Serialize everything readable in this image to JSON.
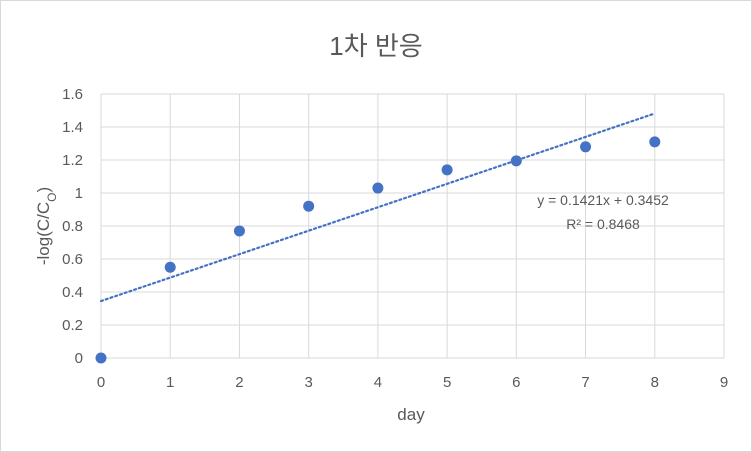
{
  "chart_data": {
    "type": "scatter",
    "title": "1차 반응",
    "xlabel": "day",
    "ylabel_main": "-log(C/C",
    "ylabel_sub": "O",
    "ylabel_close": ")",
    "xlim": [
      0,
      9
    ],
    "ylim": [
      0,
      1.6
    ],
    "x_ticks": [
      0,
      1,
      2,
      3,
      4,
      5,
      6,
      7,
      8,
      9
    ],
    "y_ticks": [
      0,
      0.2,
      0.4,
      0.6,
      0.8,
      1,
      1.2,
      1.4,
      1.6
    ],
    "y_tick_labels": [
      "0",
      "0.2",
      "0.4",
      "0.6",
      "0.8",
      "1",
      "1.2",
      "1.4",
      "1.6"
    ],
    "grid": true,
    "series": [
      {
        "x": [
          0,
          1,
          2,
          3,
          4,
          5,
          6,
          7,
          8
        ],
        "y": [
          0.0,
          0.55,
          0.77,
          0.92,
          1.03,
          1.14,
          1.195,
          1.28,
          1.31
        ],
        "color": "#4472c4"
      }
    ],
    "trendline": {
      "type": "linear",
      "slope": 0.1421,
      "intercept": 0.3452,
      "x_range": [
        0,
        8
      ],
      "color": "#4472c4",
      "equation": "y = 0.1421x + 0.3452",
      "r2_label": "R² = 0.8468"
    }
  }
}
